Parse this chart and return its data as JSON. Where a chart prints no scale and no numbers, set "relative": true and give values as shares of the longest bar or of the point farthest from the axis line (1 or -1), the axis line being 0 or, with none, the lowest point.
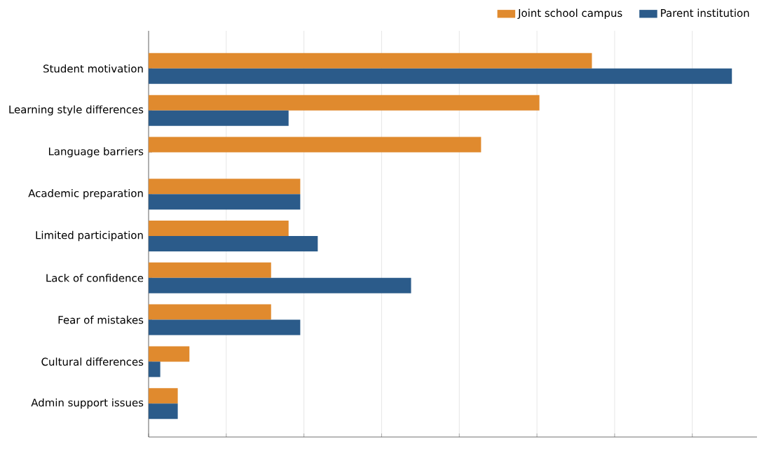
{
  "chart_data": {
    "type": "bar",
    "orientation": "horizontal",
    "relative": true,
    "grid": "x",
    "legend": "top right",
    "categories": [
      "Student motivation",
      "Learning style differences",
      "Language barriers",
      "Academic preparation",
      "Limited participation",
      "Lack of confidence",
      "Fear of mistakes",
      "Cultural differences",
      "Admin support issues"
    ],
    "series": [
      {
        "name": "Joint school campus",
        "color": "#e08a2e",
        "values": [
          0.76,
          0.67,
          0.57,
          0.26,
          0.24,
          0.21,
          0.21,
          0.07,
          0.05
        ]
      },
      {
        "name": "Parent institution",
        "color": "#2b5b8a",
        "values": [
          1,
          0.24,
          null,
          0.26,
          0.29,
          0.45,
          0.26,
          0.02,
          0.05
        ]
      }
    ]
  }
}
